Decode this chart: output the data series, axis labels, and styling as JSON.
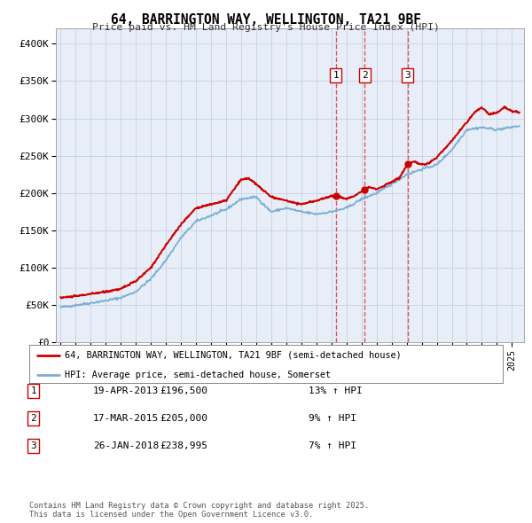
{
  "title": "64, BARRINGTON WAY, WELLINGTON, TA21 9BF",
  "subtitle": "Price paid vs. HM Land Registry's House Price Index (HPI)",
  "legend_line1": "64, BARRINGTON WAY, WELLINGTON, TA21 9BF (semi-detached house)",
  "legend_line2": "HPI: Average price, semi-detached house, Somerset",
  "house_color": "#cc0000",
  "hpi_color": "#7bafd4",
  "background_color": "#e8eef8",
  "grid_color": "#c8d0e0",
  "transactions": [
    {
      "label": "1",
      "date_f": 2013.3,
      "price": 196500
    },
    {
      "label": "2",
      "date_f": 2015.2,
      "price": 205000
    },
    {
      "label": "3",
      "date_f": 2018.08,
      "price": 238995
    }
  ],
  "table_rows": [
    [
      "1",
      "19-APR-2013",
      "£196,500",
      "13% ↑ HPI"
    ],
    [
      "2",
      "17-MAR-2015",
      "£205,000",
      "9% ↑ HPI"
    ],
    [
      "3",
      "26-JAN-2018",
      "£238,995",
      "7% ↑ HPI"
    ]
  ],
  "footer": "Contains HM Land Registry data © Crown copyright and database right 2025.\nThis data is licensed under the Open Government Licence v3.0.",
  "ylim": [
    0,
    420000
  ],
  "yticks": [
    0,
    50000,
    100000,
    150000,
    200000,
    250000,
    300000,
    350000,
    400000
  ],
  "ytick_labels": [
    "£0",
    "£50K",
    "£100K",
    "£150K",
    "£200K",
    "£250K",
    "£300K",
    "£350K",
    "£400K"
  ],
  "xlim_start": 1994.7,
  "xlim_end": 2025.8
}
